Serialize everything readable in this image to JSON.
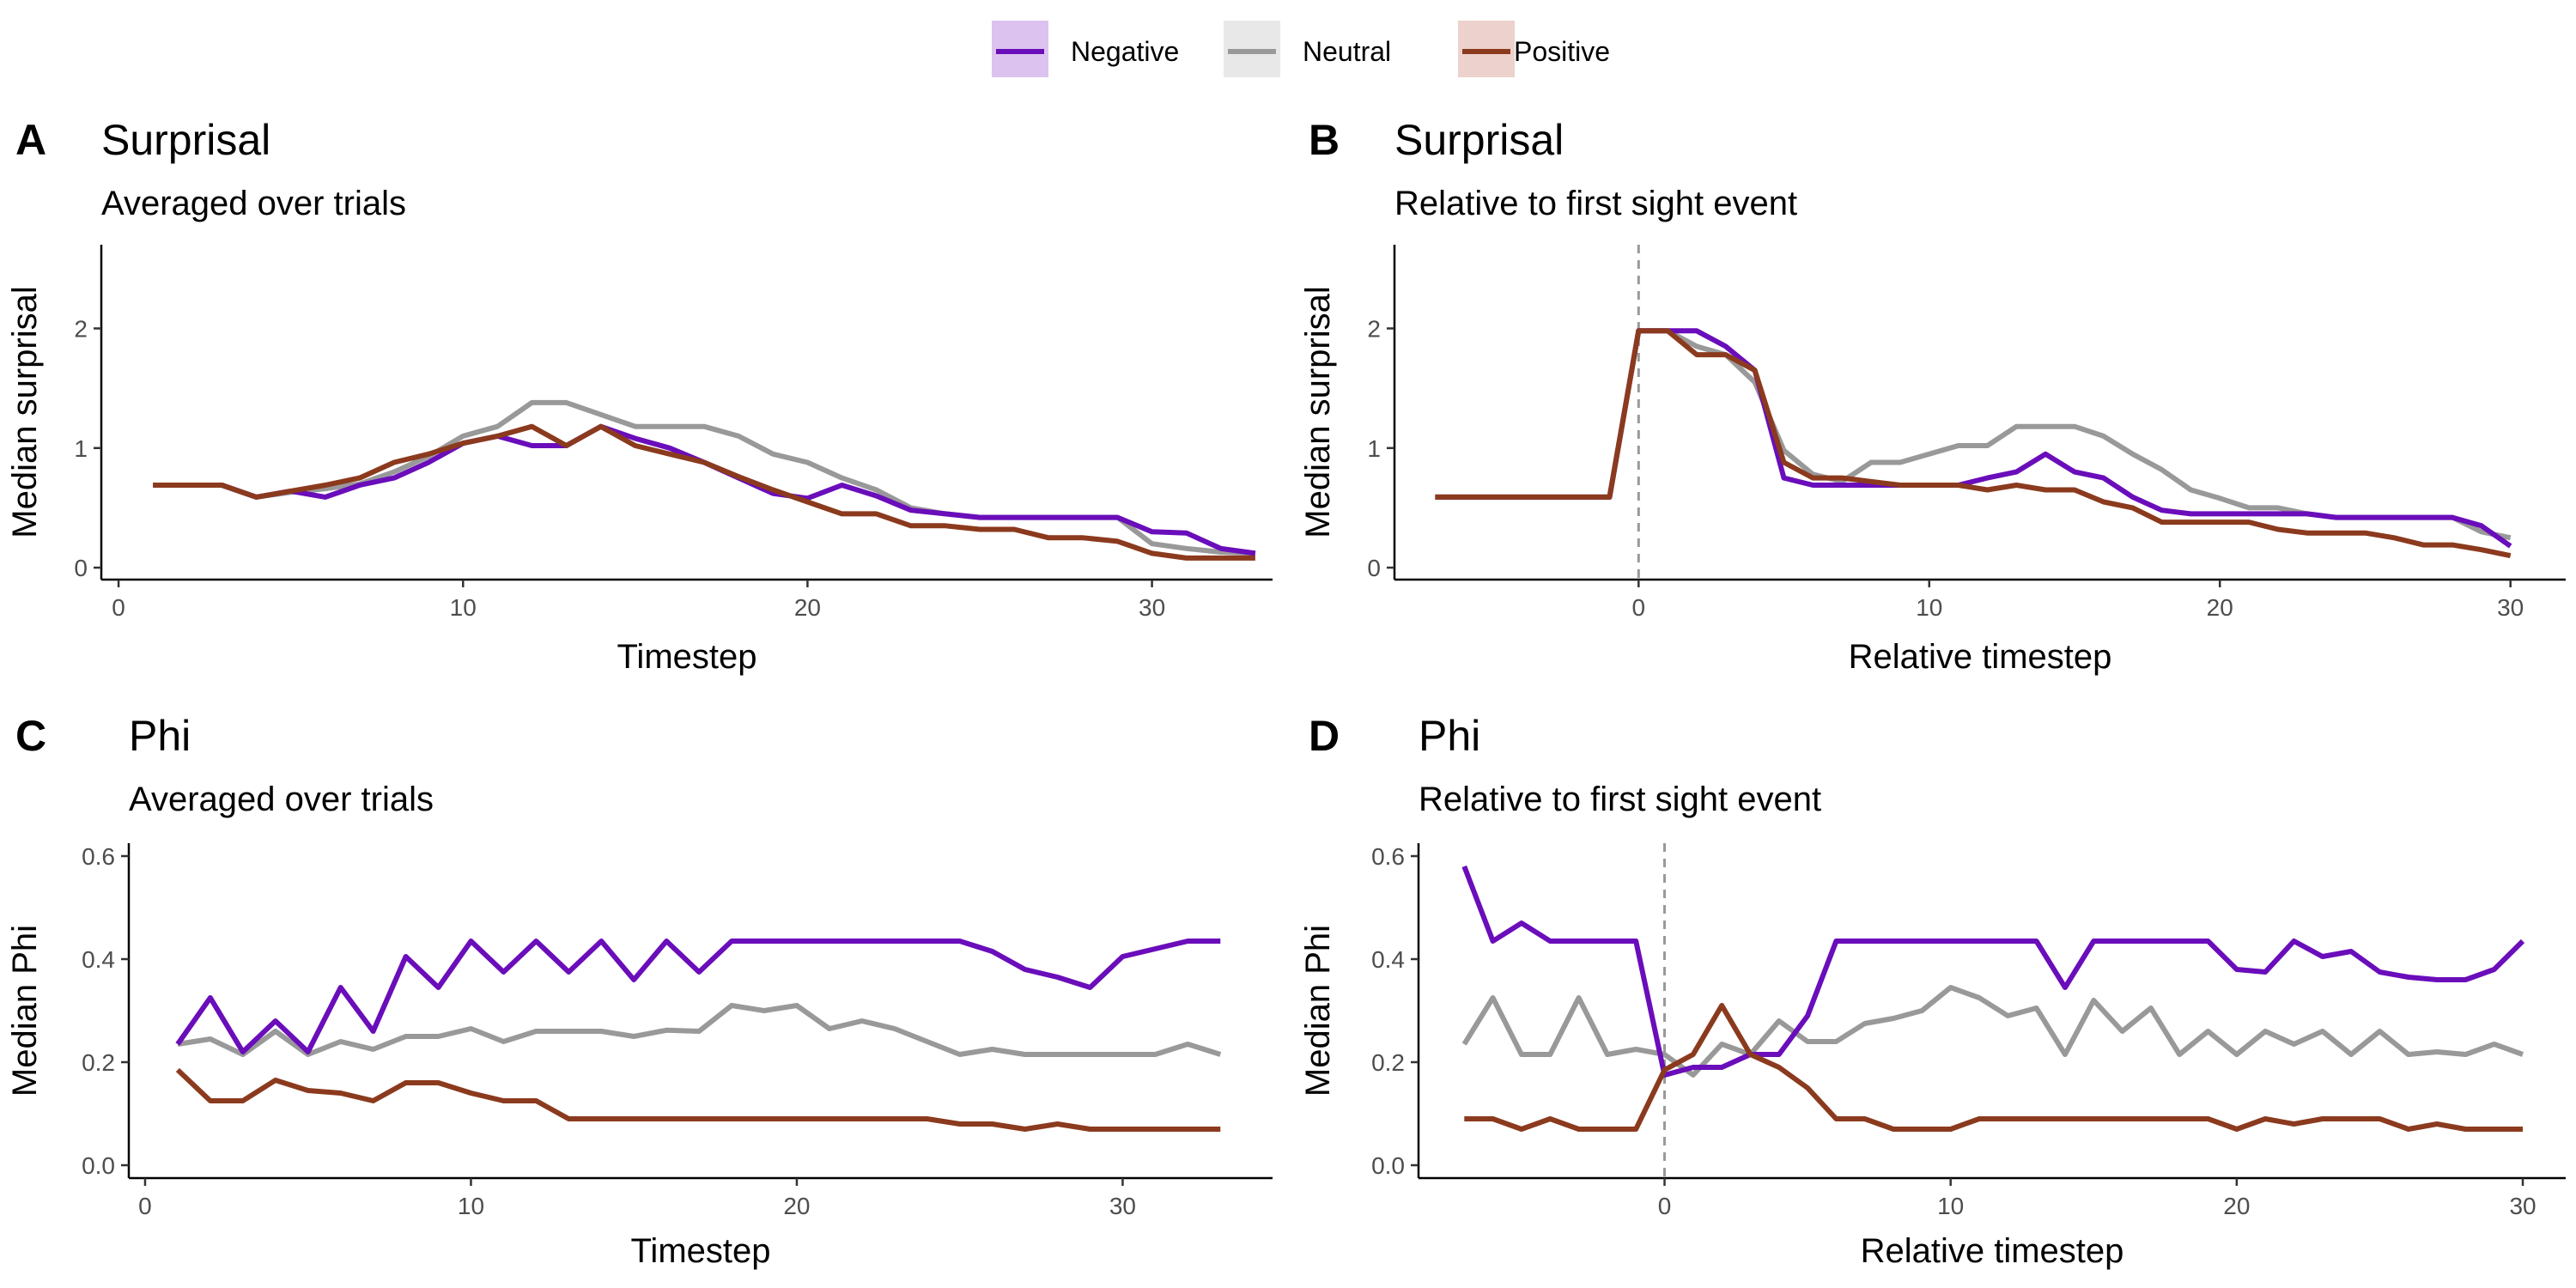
{
  "legend": {
    "entries": [
      {
        "label": "Negative",
        "color": "#6a0dba",
        "fill": "#dcc3ef"
      },
      {
        "label": "Neutral",
        "color": "#999999",
        "fill": "#e8e8e8"
      },
      {
        "label": "Positive",
        "color": "#8b3a1e",
        "fill": "#ecd1cc"
      }
    ]
  },
  "chart_data": [
    {
      "type": "line",
      "tag": "A",
      "title": "Surprisal",
      "subtitle": "Averaged over trials",
      "xlabel": "Timestep",
      "ylabel": "Median surprisal",
      "xlim": [
        -0.5,
        33.5
      ],
      "ylim": [
        -0.1,
        2.7
      ],
      "xticks": [
        0,
        10,
        20,
        30
      ],
      "yticks": [
        0,
        1,
        2
      ],
      "vline": null,
      "series": [
        {
          "name": "Neutral",
          "x": [
            1,
            2,
            3,
            4,
            5,
            6,
            7,
            8,
            9,
            10,
            11,
            12,
            13,
            14,
            15,
            16,
            17,
            18,
            19,
            20,
            21,
            22,
            23,
            24,
            25,
            26,
            27,
            28,
            29,
            30,
            31,
            32,
            33
          ],
          "y": [
            0.69,
            0.69,
            0.69,
            0.59,
            0.63,
            0.66,
            0.7,
            0.8,
            0.93,
            1.1,
            1.18,
            1.38,
            1.38,
            1.28,
            1.18,
            1.18,
            1.18,
            1.1,
            0.95,
            0.88,
            0.75,
            0.65,
            0.5,
            0.45,
            0.42,
            0.42,
            0.42,
            0.42,
            0.42,
            0.2,
            0.16,
            0.13,
            0.12
          ]
        },
        {
          "name": "Negative",
          "x": [
            1,
            2,
            3,
            4,
            5,
            6,
            7,
            8,
            9,
            10,
            11,
            12,
            13,
            14,
            15,
            16,
            17,
            18,
            19,
            20,
            21,
            22,
            23,
            24,
            25,
            26,
            27,
            28,
            29,
            30,
            31,
            32,
            33
          ],
          "y": [
            0.69,
            0.69,
            0.69,
            0.59,
            0.64,
            0.59,
            0.69,
            0.75,
            0.88,
            1.04,
            1.1,
            1.02,
            1.02,
            1.18,
            1.08,
            1.0,
            0.88,
            0.75,
            0.62,
            0.58,
            0.69,
            0.6,
            0.48,
            0.45,
            0.42,
            0.42,
            0.42,
            0.42,
            0.42,
            0.3,
            0.29,
            0.16,
            0.12
          ]
        },
        {
          "name": "Positive",
          "x": [
            1,
            2,
            3,
            4,
            5,
            6,
            7,
            8,
            9,
            10,
            11,
            12,
            13,
            14,
            15,
            16,
            17,
            18,
            19,
            20,
            21,
            22,
            23,
            24,
            25,
            26,
            27,
            28,
            29,
            30,
            31,
            32,
            33
          ],
          "y": [
            0.69,
            0.69,
            0.69,
            0.59,
            0.64,
            0.69,
            0.75,
            0.88,
            0.95,
            1.04,
            1.1,
            1.18,
            1.02,
            1.18,
            1.02,
            0.95,
            0.88,
            0.76,
            0.65,
            0.55,
            0.45,
            0.45,
            0.35,
            0.35,
            0.32,
            0.32,
            0.25,
            0.25,
            0.22,
            0.12,
            0.08,
            0.08,
            0.08
          ]
        }
      ]
    },
    {
      "type": "line",
      "tag": "B",
      "title": "Surprisal",
      "subtitle": "Relative to first sight event",
      "xlabel": "Relative timestep",
      "ylabel": "Median surprisal",
      "xlim": [
        -8.4,
        31.9
      ],
      "ylim": [
        -0.1,
        2.7
      ],
      "xticks": [
        0,
        10,
        20,
        30
      ],
      "yticks": [
        0,
        1,
        2
      ],
      "vline": 0,
      "series": [
        {
          "name": "Neutral",
          "x": [
            -7,
            -6,
            -5,
            -4,
            -3,
            -2,
            -1,
            0,
            1,
            2,
            3,
            4,
            5,
            6,
            7,
            8,
            9,
            10,
            11,
            12,
            13,
            14,
            15,
            16,
            17,
            18,
            19,
            20,
            21,
            22,
            23,
            24,
            25,
            26,
            27,
            28,
            29,
            30
          ],
          "y": [
            0.59,
            0.59,
            0.59,
            0.59,
            0.59,
            0.59,
            0.59,
            1.98,
            1.98,
            1.85,
            1.78,
            1.55,
            0.98,
            0.78,
            0.72,
            0.88,
            0.88,
            0.95,
            1.02,
            1.02,
            1.18,
            1.18,
            1.18,
            1.1,
            0.95,
            0.82,
            0.65,
            0.58,
            0.5,
            0.5,
            0.45,
            0.42,
            0.42,
            0.42,
            0.42,
            0.42,
            0.3,
            0.25
          ]
        },
        {
          "name": "Negative",
          "x": [
            -7,
            -6,
            -5,
            -4,
            -3,
            -2,
            -1,
            0,
            1,
            2,
            3,
            4,
            5,
            6,
            7,
            8,
            9,
            10,
            11,
            12,
            13,
            14,
            15,
            16,
            17,
            18,
            19,
            20,
            21,
            22,
            23,
            24,
            25,
            26,
            27,
            28,
            29,
            30
          ],
          "y": [
            0.59,
            0.59,
            0.59,
            0.59,
            0.59,
            0.59,
            0.59,
            1.98,
            1.98,
            1.98,
            1.85,
            1.65,
            0.75,
            0.69,
            0.69,
            0.69,
            0.69,
            0.69,
            0.69,
            0.75,
            0.8,
            0.95,
            0.8,
            0.75,
            0.59,
            0.48,
            0.45,
            0.45,
            0.45,
            0.45,
            0.45,
            0.42,
            0.42,
            0.42,
            0.42,
            0.42,
            0.35,
            0.18
          ]
        },
        {
          "name": "Positive",
          "x": [
            -7,
            -6,
            -5,
            -4,
            -3,
            -2,
            -1,
            0,
            1,
            2,
            3,
            4,
            5,
            6,
            7,
            8,
            9,
            10,
            11,
            12,
            13,
            14,
            15,
            16,
            17,
            18,
            19,
            20,
            21,
            22,
            23,
            24,
            25,
            26,
            27,
            28,
            29,
            30
          ],
          "y": [
            0.59,
            0.59,
            0.59,
            0.59,
            0.59,
            0.59,
            0.59,
            1.98,
            1.98,
            1.78,
            1.78,
            1.65,
            0.88,
            0.75,
            0.75,
            0.72,
            0.69,
            0.69,
            0.69,
            0.65,
            0.69,
            0.65,
            0.65,
            0.55,
            0.5,
            0.38,
            0.38,
            0.38,
            0.38,
            0.32,
            0.29,
            0.29,
            0.29,
            0.25,
            0.19,
            0.19,
            0.15,
            0.1
          ]
        }
      ]
    },
    {
      "type": "line",
      "tag": "C",
      "title": "Phi",
      "subtitle": "Averaged over trials",
      "xlabel": "Timestep",
      "ylabel": "Median Phi",
      "xlim": [
        -0.5,
        34.6
      ],
      "ylim": [
        -0.025,
        0.625
      ],
      "xticks": [
        0,
        10,
        20,
        30
      ],
      "yticks": [
        0.0,
        0.2,
        0.4,
        0.6
      ],
      "vline": null,
      "series": [
        {
          "name": "Neutral",
          "x": [
            1,
            2,
            3,
            4,
            5,
            6,
            7,
            8,
            9,
            10,
            11,
            12,
            13,
            14,
            15,
            16,
            17,
            18,
            19,
            20,
            21,
            22,
            23,
            24,
            25,
            26,
            27,
            28,
            29,
            30,
            31,
            32,
            33
          ],
          "y": [
            0.235,
            0.245,
            0.215,
            0.26,
            0.215,
            0.24,
            0.225,
            0.25,
            0.25,
            0.265,
            0.24,
            0.26,
            0.26,
            0.26,
            0.25,
            0.262,
            0.26,
            0.31,
            0.3,
            0.31,
            0.265,
            0.28,
            0.265,
            0.24,
            0.215,
            0.225,
            0.215,
            0.215,
            0.215,
            0.215,
            0.215,
            0.235,
            0.215
          ]
        },
        {
          "name": "Negative",
          "x": [
            1,
            2,
            3,
            4,
            5,
            6,
            7,
            8,
            9,
            10,
            11,
            12,
            13,
            14,
            15,
            16,
            17,
            18,
            19,
            20,
            21,
            22,
            23,
            24,
            25,
            26,
            27,
            28,
            29,
            30,
            31,
            32,
            33
          ],
          "y": [
            0.235,
            0.325,
            0.22,
            0.28,
            0.22,
            0.345,
            0.26,
            0.405,
            0.345,
            0.435,
            0.375,
            0.435,
            0.375,
            0.435,
            0.36,
            0.435,
            0.375,
            0.435,
            0.435,
            0.435,
            0.435,
            0.435,
            0.435,
            0.435,
            0.435,
            0.415,
            0.38,
            0.365,
            0.345,
            0.405,
            0.42,
            0.435,
            0.435
          ]
        },
        {
          "name": "Positive",
          "x": [
            1,
            2,
            3,
            4,
            5,
            6,
            7,
            8,
            9,
            10,
            11,
            12,
            13,
            14,
            15,
            16,
            17,
            18,
            19,
            20,
            21,
            22,
            23,
            24,
            25,
            26,
            27,
            28,
            29,
            30,
            31,
            32,
            33
          ],
          "y": [
            0.185,
            0.125,
            0.125,
            0.165,
            0.145,
            0.14,
            0.125,
            0.16,
            0.16,
            0.14,
            0.125,
            0.125,
            0.09,
            0.09,
            0.09,
            0.09,
            0.09,
            0.09,
            0.09,
            0.09,
            0.09,
            0.09,
            0.09,
            0.09,
            0.08,
            0.08,
            0.07,
            0.08,
            0.07,
            0.07,
            0.07,
            0.07,
            0.07
          ]
        }
      ]
    },
    {
      "type": "line",
      "tag": "D",
      "title": "Phi",
      "subtitle": "Relative to first sight event",
      "xlabel": "Relative timestep",
      "ylabel": "Median Phi",
      "xlim": [
        -8.6,
        31.5
      ],
      "ylim": [
        -0.025,
        0.625
      ],
      "xticks": [
        0,
        10,
        20,
        30
      ],
      "yticks": [
        0.0,
        0.2,
        0.4,
        0.6
      ],
      "vline": 0,
      "series": [
        {
          "name": "Neutral",
          "x": [
            -7,
            -6,
            -5,
            -4,
            -3,
            -2,
            -1,
            0,
            1,
            2,
            3,
            4,
            5,
            6,
            7,
            8,
            9,
            10,
            11,
            12,
            13,
            14,
            15,
            16,
            17,
            18,
            19,
            20,
            21,
            22,
            23,
            24,
            25,
            26,
            27,
            28,
            29,
            30
          ],
          "y": [
            0.235,
            0.325,
            0.215,
            0.215,
            0.325,
            0.215,
            0.225,
            0.215,
            0.175,
            0.235,
            0.215,
            0.28,
            0.24,
            0.24,
            0.275,
            0.285,
            0.3,
            0.345,
            0.325,
            0.29,
            0.305,
            0.215,
            0.32,
            0.26,
            0.305,
            0.215,
            0.26,
            0.215,
            0.26,
            0.235,
            0.26,
            0.215,
            0.26,
            0.215,
            0.22,
            0.215,
            0.235,
            0.215
          ]
        },
        {
          "name": "Negative",
          "x": [
            -7,
            -6,
            -5,
            -4,
            -3,
            -2,
            -1,
            0,
            1,
            2,
            3,
            4,
            5,
            6,
            7,
            8,
            9,
            10,
            11,
            12,
            13,
            14,
            15,
            16,
            17,
            18,
            19,
            20,
            21,
            22,
            23,
            24,
            25,
            26,
            27,
            28,
            29,
            30
          ],
          "y": [
            0.58,
            0.435,
            0.47,
            0.435,
            0.435,
            0.435,
            0.435,
            0.175,
            0.19,
            0.19,
            0.215,
            0.215,
            0.29,
            0.435,
            0.435,
            0.435,
            0.435,
            0.435,
            0.435,
            0.435,
            0.435,
            0.345,
            0.435,
            0.435,
            0.435,
            0.435,
            0.435,
            0.38,
            0.375,
            0.435,
            0.405,
            0.415,
            0.375,
            0.365,
            0.36,
            0.36,
            0.38,
            0.435
          ]
        },
        {
          "name": "Positive",
          "x": [
            -7,
            -6,
            -5,
            -4,
            -3,
            -2,
            -1,
            0,
            1,
            2,
            3,
            4,
            5,
            6,
            7,
            8,
            9,
            10,
            11,
            12,
            13,
            14,
            15,
            16,
            17,
            18,
            19,
            20,
            21,
            22,
            23,
            24,
            25,
            26,
            27,
            28,
            29,
            30
          ],
          "y": [
            0.09,
            0.09,
            0.07,
            0.09,
            0.07,
            0.07,
            0.07,
            0.185,
            0.215,
            0.31,
            0.215,
            0.19,
            0.15,
            0.09,
            0.09,
            0.07,
            0.07,
            0.07,
            0.09,
            0.09,
            0.09,
            0.09,
            0.09,
            0.09,
            0.09,
            0.09,
            0.09,
            0.07,
            0.09,
            0.08,
            0.09,
            0.09,
            0.09,
            0.07,
            0.08,
            0.07,
            0.07,
            0.07
          ]
        }
      ]
    }
  ]
}
